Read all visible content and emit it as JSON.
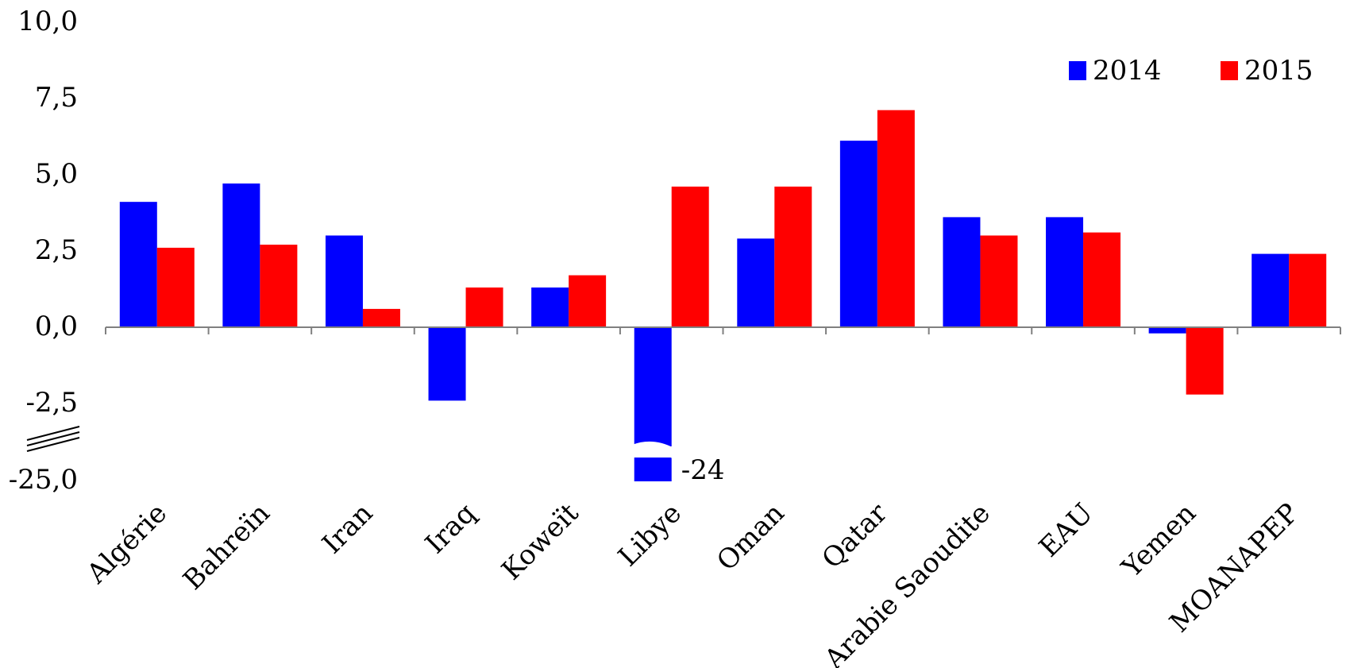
{
  "chart_data": {
    "type": "bar",
    "categories": [
      "Algérie",
      "Bahreïn",
      "Iran",
      "Iraq",
      "Koweït",
      "Libye",
      "Oman",
      "Qatar",
      "Arabie Saoudite",
      "EAU",
      "Yemen",
      "MOANAPEP"
    ],
    "series": [
      {
        "name": "2014",
        "color": "#0000ff",
        "values": [
          4.1,
          4.7,
          3.0,
          -2.4,
          1.3,
          -24,
          2.9,
          6.1,
          3.6,
          3.6,
          -0.2,
          2.4
        ]
      },
      {
        "name": "2015",
        "color": "#ff0000",
        "values": [
          2.6,
          2.7,
          0.6,
          1.3,
          1.7,
          4.6,
          4.6,
          7.1,
          3.0,
          3.1,
          -2.2,
          2.4
        ]
      }
    ],
    "y_ticks": [
      "10,0",
      "7,5",
      "5,0",
      "2,5",
      "0,0",
      "-2,5",
      "-25,0"
    ],
    "ylim": [
      -25,
      10
    ],
    "axis_break": {
      "from": -3.5,
      "to": -24
    },
    "annotations": [
      {
        "category": "Libye",
        "series": "2014",
        "text": "-24"
      }
    ],
    "legend_position": "top-right",
    "grid": false
  }
}
